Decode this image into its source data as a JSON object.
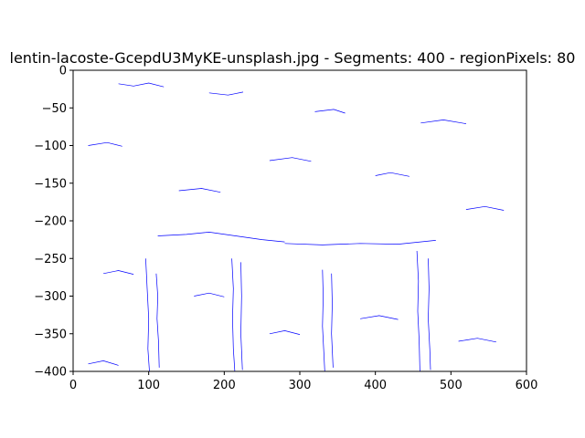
{
  "chart_data": {
    "type": "line",
    "title": "lentin-lacoste-GcepdU3MyKE-unsplash.jpg - Segments: 400 - regionPixels: 80",
    "xlabel": "",
    "ylabel": "",
    "xlim": [
      0,
      600
    ],
    "ylim": [
      -400,
      0
    ],
    "xticks": [
      0,
      100,
      200,
      300,
      400,
      500,
      600
    ],
    "yticks": [
      0,
      -50,
      -100,
      -150,
      -200,
      -250,
      -300,
      -350,
      -400
    ],
    "xtick_labels": [
      "0",
      "100",
      "200",
      "300",
      "400",
      "500",
      "600"
    ],
    "ytick_labels": [
      "0",
      "−50",
      "−100",
      "−150",
      "−200",
      "−250",
      "−300",
      "−350",
      "−400"
    ],
    "grid": false,
    "legend": "none",
    "line_color": "#0000ff",
    "series": [
      {
        "values": [
          [
            110,
            -270
          ],
          [
            112,
            -300
          ],
          [
            111,
            -330
          ],
          [
            113,
            -360
          ],
          [
            114,
            -395
          ]
        ]
      },
      {
        "values": [
          [
            96,
            -250
          ],
          [
            98,
            -290
          ],
          [
            100,
            -330
          ],
          [
            99,
            -370
          ],
          [
            101,
            -400
          ]
        ]
      },
      {
        "values": [
          [
            210,
            -250
          ],
          [
            212,
            -290
          ],
          [
            211,
            -330
          ],
          [
            212,
            -370
          ],
          [
            214,
            -400
          ]
        ]
      },
      {
        "values": [
          [
            222,
            -255
          ],
          [
            223,
            -300
          ],
          [
            222,
            -350
          ],
          [
            224,
            -398
          ]
        ]
      },
      {
        "values": [
          [
            330,
            -265
          ],
          [
            331,
            -300
          ],
          [
            330,
            -340
          ],
          [
            332,
            -380
          ],
          [
            333,
            -400
          ]
        ]
      },
      {
        "values": [
          [
            342,
            -270
          ],
          [
            343,
            -310
          ],
          [
            342,
            -350
          ],
          [
            344,
            -395
          ]
        ]
      },
      {
        "values": [
          [
            455,
            -240
          ],
          [
            457,
            -280
          ],
          [
            456,
            -320
          ],
          [
            458,
            -360
          ],
          [
            459,
            -400
          ]
        ]
      },
      {
        "values": [
          [
            470,
            -250
          ],
          [
            471,
            -290
          ],
          [
            470,
            -330
          ],
          [
            472,
            -370
          ],
          [
            473,
            -398
          ]
        ]
      },
      {
        "values": [
          [
            112,
            -220
          ],
          [
            150,
            -218
          ],
          [
            180,
            -215
          ],
          [
            215,
            -220
          ],
          [
            250,
            -225
          ],
          [
            280,
            -228
          ]
        ]
      },
      {
        "values": [
          [
            280,
            -230
          ],
          [
            330,
            -232
          ],
          [
            380,
            -230
          ],
          [
            430,
            -231
          ],
          [
            480,
            -226
          ]
        ]
      },
      {
        "values": [
          [
            60,
            -18
          ],
          [
            80,
            -21
          ],
          [
            100,
            -17
          ],
          [
            120,
            -22
          ]
        ]
      },
      {
        "values": [
          [
            180,
            -30
          ],
          [
            205,
            -33
          ],
          [
            225,
            -29
          ]
        ]
      },
      {
        "values": [
          [
            320,
            -55
          ],
          [
            345,
            -52
          ],
          [
            360,
            -57
          ]
        ]
      },
      {
        "values": [
          [
            460,
            -70
          ],
          [
            490,
            -66
          ],
          [
            520,
            -71
          ]
        ]
      },
      {
        "values": [
          [
            20,
            -100
          ],
          [
            45,
            -96
          ],
          [
            65,
            -101
          ]
        ]
      },
      {
        "values": [
          [
            260,
            -120
          ],
          [
            290,
            -116
          ],
          [
            315,
            -121
          ]
        ]
      },
      {
        "values": [
          [
            400,
            -140
          ],
          [
            420,
            -136
          ],
          [
            445,
            -141
          ]
        ]
      },
      {
        "values": [
          [
            140,
            -160
          ],
          [
            170,
            -157
          ],
          [
            195,
            -162
          ]
        ]
      },
      {
        "values": [
          [
            520,
            -185
          ],
          [
            545,
            -181
          ],
          [
            570,
            -186
          ]
        ]
      },
      {
        "values": [
          [
            40,
            -270
          ],
          [
            60,
            -266
          ],
          [
            80,
            -271
          ]
        ]
      },
      {
        "values": [
          [
            160,
            -300
          ],
          [
            180,
            -296
          ],
          [
            200,
            -301
          ]
        ]
      },
      {
        "values": [
          [
            380,
            -330
          ],
          [
            405,
            -326
          ],
          [
            430,
            -331
          ]
        ]
      },
      {
        "values": [
          [
            510,
            -360
          ],
          [
            535,
            -356
          ],
          [
            560,
            -361
          ]
        ]
      },
      {
        "values": [
          [
            20,
            -390
          ],
          [
            40,
            -386
          ],
          [
            60,
            -392
          ]
        ]
      },
      {
        "values": [
          [
            260,
            -350
          ],
          [
            280,
            -346
          ],
          [
            300,
            -351
          ]
        ]
      }
    ]
  }
}
